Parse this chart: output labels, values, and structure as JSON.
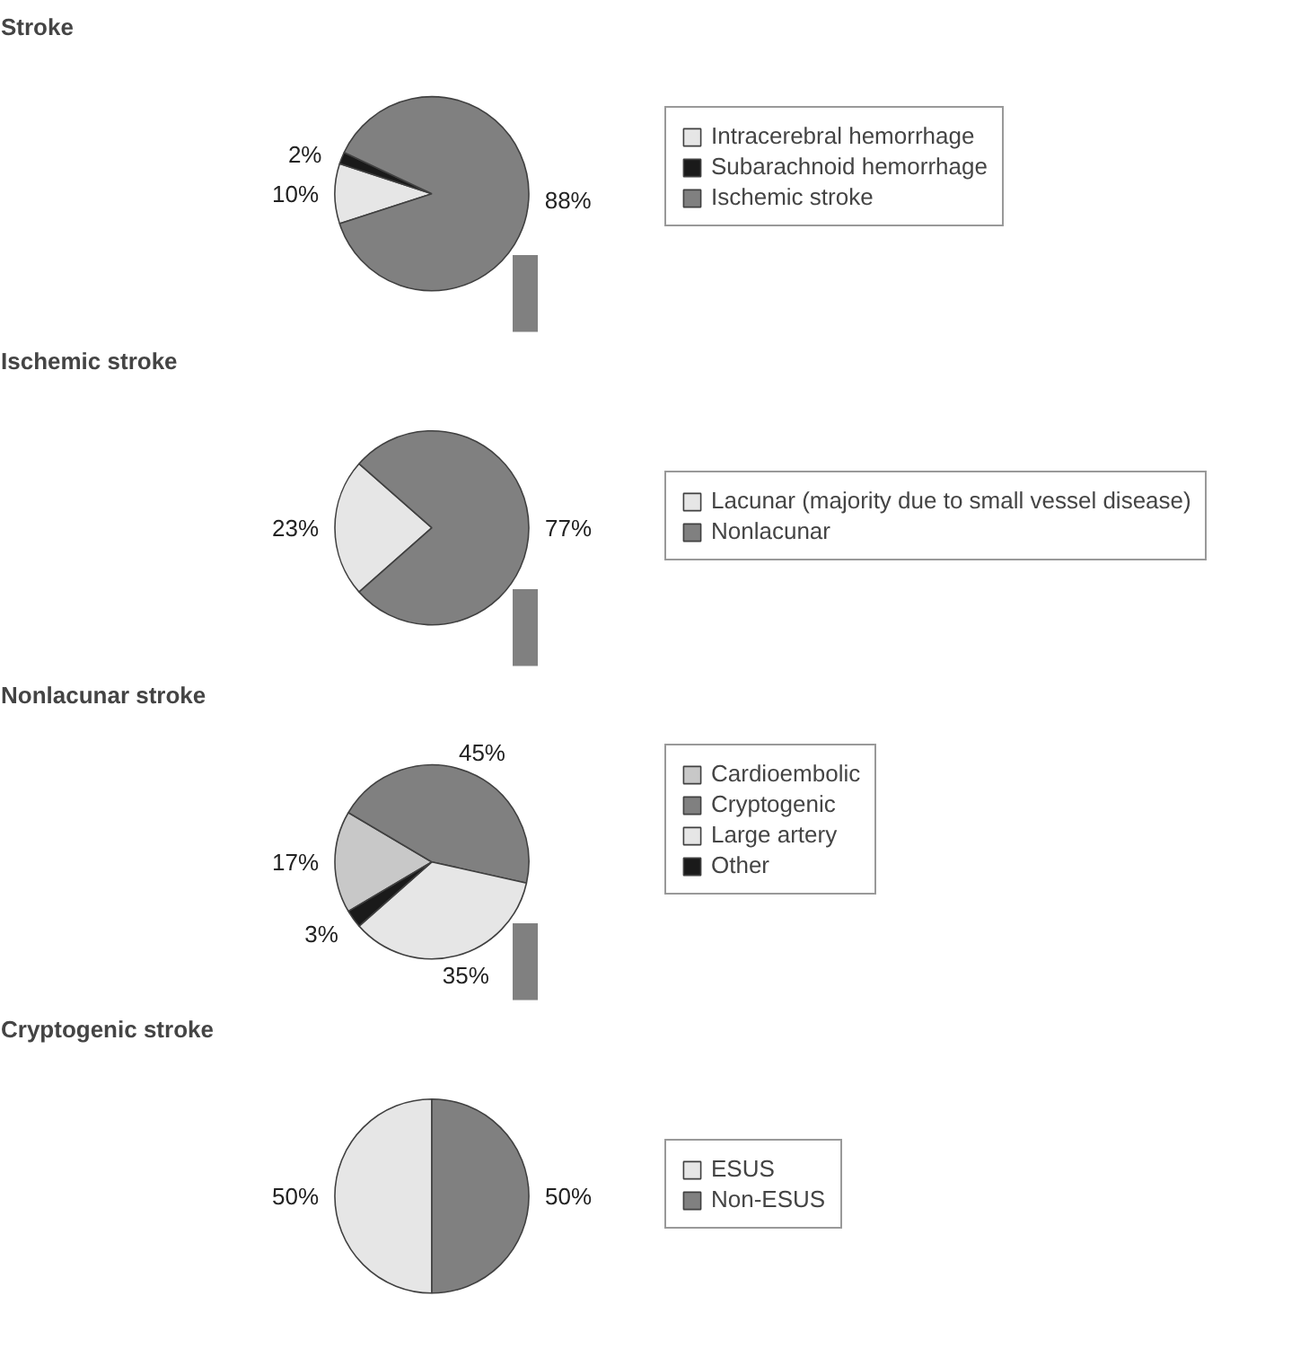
{
  "chart_data": [
    {
      "type": "pie",
      "title": "Stroke",
      "categories": [
        "Intracerebral hemorrhage",
        "Subarachnoid hemorrhage",
        "Ischemic stroke"
      ],
      "values": [
        10,
        2,
        88
      ],
      "colors": [
        "#e6e6e6",
        "#1a1a1a",
        "#808080"
      ],
      "value_labels": [
        "10%",
        "2%",
        "88%"
      ],
      "legend": "right"
    },
    {
      "type": "pie",
      "title": "Ischemic stroke",
      "categories": [
        "Lacunar (majority due to small vessel disease)",
        "Nonlacunar"
      ],
      "values": [
        23,
        77
      ],
      "colors": [
        "#e6e6e6",
        "#808080"
      ],
      "value_labels": [
        "23%",
        "77%"
      ],
      "legend": "right"
    },
    {
      "type": "pie",
      "title": "Nonlacunar stroke",
      "categories": [
        "Cardioembolic",
        "Cryptogenic",
        "Large artery",
        "Other"
      ],
      "values": [
        17,
        45,
        35,
        3
      ],
      "colors": [
        "#c8c8c8",
        "#808080",
        "#e6e6e6",
        "#1a1a1a"
      ],
      "value_labels": [
        "17%",
        "45%",
        "35%",
        "3%"
      ],
      "legend": "right"
    },
    {
      "type": "pie",
      "title": "Cryptogenic stroke",
      "categories": [
        "ESUS",
        "Non-ESUS"
      ],
      "values": [
        50,
        50
      ],
      "colors": [
        "#e6e6e6",
        "#808080"
      ],
      "value_labels": [
        "50%",
        "50%"
      ],
      "legend": "right"
    }
  ]
}
